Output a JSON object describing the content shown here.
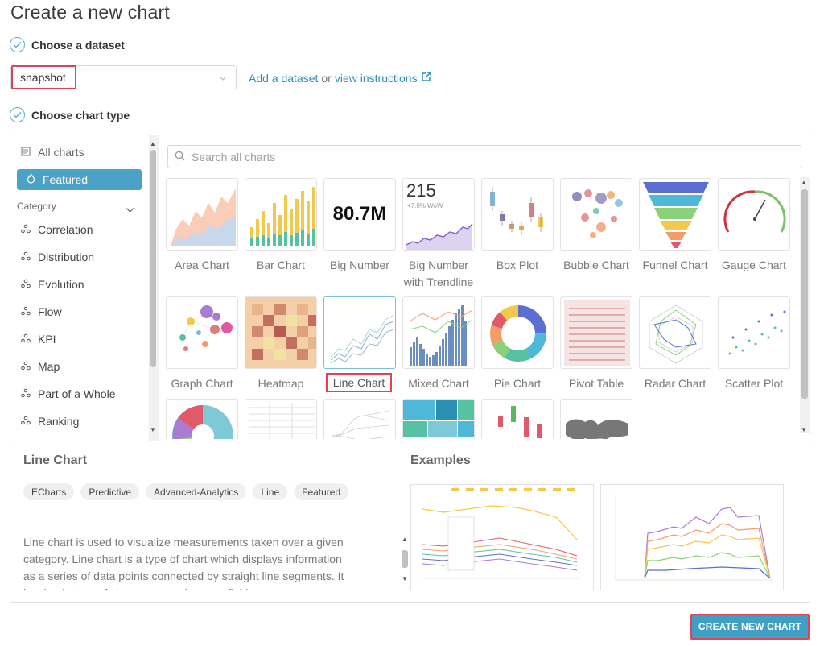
{
  "page": {
    "title": "Create a new chart"
  },
  "steps": {
    "dataset": "Choose a dataset",
    "chart_type": "Choose chart type"
  },
  "dataset": {
    "selected": "snapshot",
    "add_link": "Add a dataset",
    "or": "or",
    "instructions_link": "view instructions"
  },
  "sidebar": {
    "all_charts": "All charts",
    "featured": "Featured",
    "category_label": "Category",
    "categories": [
      "Correlation",
      "Distribution",
      "Evolution",
      "Flow",
      "KPI",
      "Map",
      "Part of a Whole",
      "Ranking"
    ]
  },
  "search": {
    "placeholder": "Search all charts"
  },
  "gallery": {
    "row1": [
      "Area Chart",
      "Bar Chart",
      "Big Number",
      "Big Number with Trendline",
      "Box Plot",
      "Bubble Chart",
      "Funnel Chart",
      "Gauge Chart"
    ],
    "row2": [
      "Graph Chart",
      "Heatmap",
      "Line Chart",
      "Mixed Chart",
      "Pie Chart",
      "Pivot Table",
      "Radar Chart",
      "Scatter Plot"
    ],
    "big_number_value": "80.7M",
    "trendline_value": "215",
    "trendline_sub": "+7.0% WoW"
  },
  "details": {
    "title": "Line Chart",
    "tags": [
      "ECharts",
      "Predictive",
      "Advanced-Analytics",
      "Line",
      "Featured"
    ],
    "description": "Line chart is used to visualize measurements taken over a given category. Line chart is a type of chart which displays information as a series of data points connected by straight line segments. It is a basic type of chart common in many fields.",
    "examples_title": "Examples"
  },
  "actions": {
    "create": "CREATE NEW CHART"
  },
  "colors": {
    "accent": "#4aa2c6",
    "highlight": "#e04355",
    "button": "#3f9fc4"
  }
}
